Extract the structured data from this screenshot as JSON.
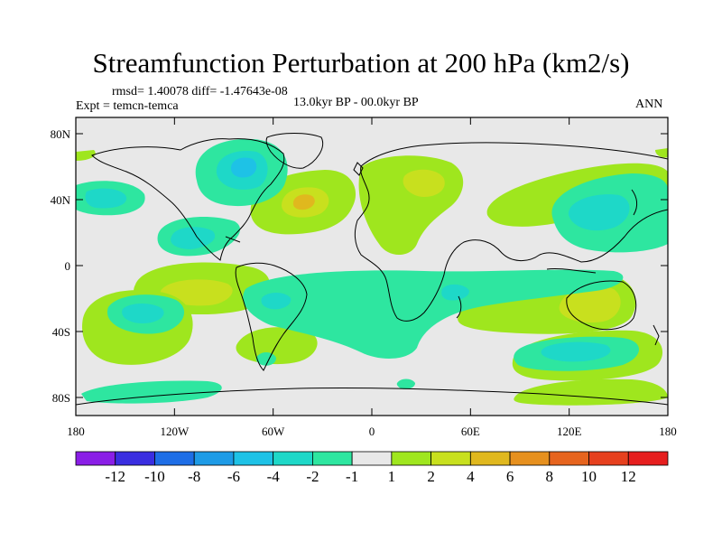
{
  "title": "Streamfunction Perturbation at 200 hPa (km2/s)",
  "stats": "rmsd= 1.40078 diff= -1.47643e-08",
  "experiment": "Expt = temcn-temca",
  "period": "13.0kyr BP - 00.0kyr BP",
  "season": "ANN",
  "axes": {
    "lat_ticks": [
      "80N",
      "40N",
      "0",
      "40S",
      "80S"
    ],
    "lon_ticks": [
      "180",
      "120W",
      "60W",
      "0",
      "60E",
      "120E",
      "180"
    ]
  },
  "colorbar": {
    "labels": [
      "-12",
      "-10",
      "-8",
      "-6",
      "-4",
      "-2",
      "-1",
      "1",
      "2",
      "4",
      "6",
      "8",
      "10",
      "12"
    ],
    "colors": [
      "#8a1ee6",
      "#3a2ee0",
      "#1e6ee6",
      "#1e9be6",
      "#1ec2e6",
      "#1ed8c8",
      "#2ee6a0",
      "#e8e8e8",
      "#9fe61e",
      "#c8e01e",
      "#e0b81e",
      "#e6901e",
      "#e6641e",
      "#e6401e",
      "#e61e1e"
    ]
  },
  "colors": {
    "background": "#e8e8e8",
    "pos_weak": "#9fe61e",
    "pos_mid": "#c8e01e",
    "pos_strong": "#e0b81e",
    "neg_weak": "#2ee6a0",
    "neg_mid": "#1ed8c8",
    "neg_strong": "#1ec2e6"
  }
}
